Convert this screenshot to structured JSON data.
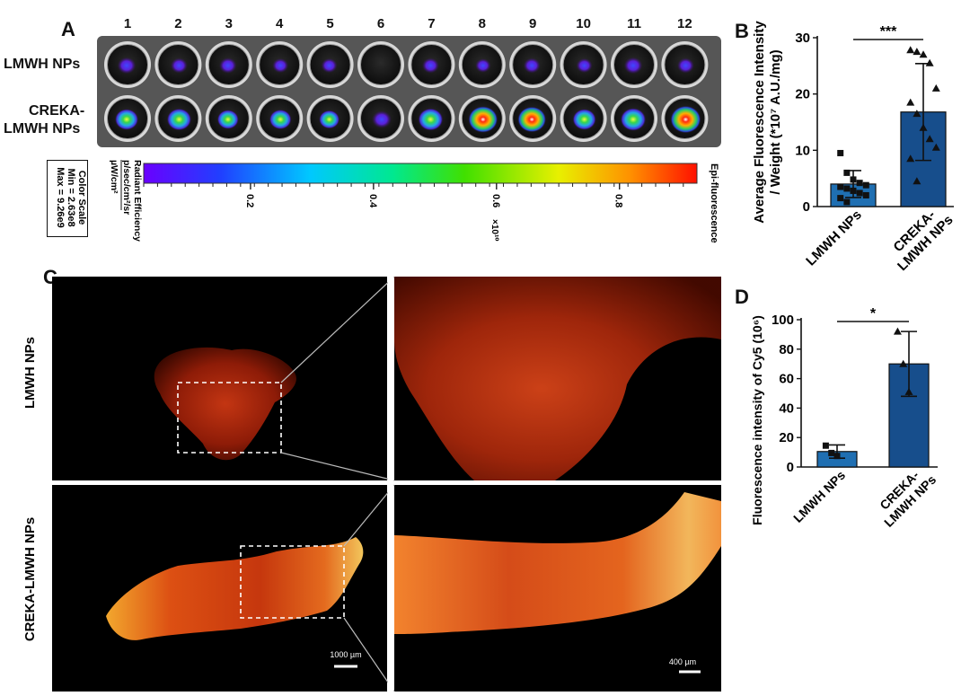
{
  "panel_a": {
    "letter": "A",
    "columns": [
      "1",
      "2",
      "3",
      "4",
      "5",
      "6",
      "7",
      "8",
      "9",
      "10",
      "11",
      "12"
    ],
    "row_labels": [
      "LMWH NPs",
      "CREKA-\nLMWH NPs"
    ],
    "row1_label": "LMWH NPs",
    "row2_label_line1": "CREKA-",
    "row2_label_line2": "LMWH NPs",
    "row1_signal": [
      0.3,
      0.22,
      0.25,
      0.18,
      0.18,
      0.02,
      0.22,
      0.15,
      0.22,
      0.18,
      0.3,
      0.22
    ],
    "row2_signal": [
      0.55,
      0.6,
      0.45,
      0.48,
      0.4,
      0.35,
      0.62,
      0.85,
      0.8,
      0.55,
      0.65,
      0.9
    ],
    "color_scale": {
      "title": "Color Scale",
      "min": "Min = 2.63e8",
      "max": "Max = 9.26e9",
      "unit_line1": "Radiant Efficiency",
      "unit_line2": "p/sec/cm²/sr",
      "unit_line3": "µW/cm²",
      "ticks": [
        "0.2",
        "0.4",
        "0.6",
        "0.8"
      ],
      "exponent": "×10¹⁰",
      "mode": "Epi-fluorescence"
    }
  },
  "panel_b": {
    "letter": "B",
    "chart_data": {
      "type": "bar",
      "categories": [
        "LMWH NPs",
        "CREKA-\nLMWH NPs"
      ],
      "values": [
        4.0,
        16.8
      ],
      "errors": [
        2.4,
        8.6
      ],
      "points": [
        [
          9.5,
          6.0,
          4.8,
          4.2,
          3.8,
          3.5,
          3.2,
          2.8,
          2.4,
          2.0,
          1.5,
          0.8
        ],
        [
          27.8,
          27.5,
          27.0,
          25.5,
          21.0,
          18.5,
          16.5,
          14.0,
          12.0,
          10.5,
          8.5,
          4.5
        ]
      ],
      "ylabel_line1": "Average Fluorescence Intensity",
      "ylabel_line2": "/ Weight (*10⁷ A.U./mg)",
      "ylim": [
        0,
        30
      ],
      "yticks": [
        "0",
        "10",
        "20",
        "30"
      ],
      "significance": "***",
      "colors": [
        "#1f6fb2",
        "#174e8c"
      ]
    },
    "xtick1": "LMWH NPs",
    "xtick2_line1": "CREKA-",
    "xtick2_line2": "LMWH NPs"
  },
  "panel_c": {
    "letter": "C",
    "row1_label": "LMWH NPs",
    "row2_label": "CREKA-LMWH NPs",
    "scalebar_left": "1000 µm",
    "scalebar_right": "400 µm"
  },
  "panel_d": {
    "letter": "D",
    "chart_data": {
      "type": "bar",
      "categories": [
        "LMWH NPs",
        "CREKA-\nLMWH NPs"
      ],
      "values": [
        10.5,
        70
      ],
      "errors": [
        4.5,
        22
      ],
      "points": [
        [
          14.5,
          9.5,
          7.5
        ],
        [
          92,
          70,
          51
        ]
      ],
      "ylabel": "Fluorescence intensity of Cy5 (10⁶)",
      "ylim": [
        0,
        100
      ],
      "yticks": [
        "0",
        "20",
        "40",
        "60",
        "80",
        "100"
      ],
      "significance": "*",
      "colors": [
        "#1f6fb2",
        "#174e8c"
      ]
    },
    "xtick1": "LMWH NPs",
    "xtick2_line1": "CREKA-",
    "xtick2_line2": "LMWH NPs"
  }
}
